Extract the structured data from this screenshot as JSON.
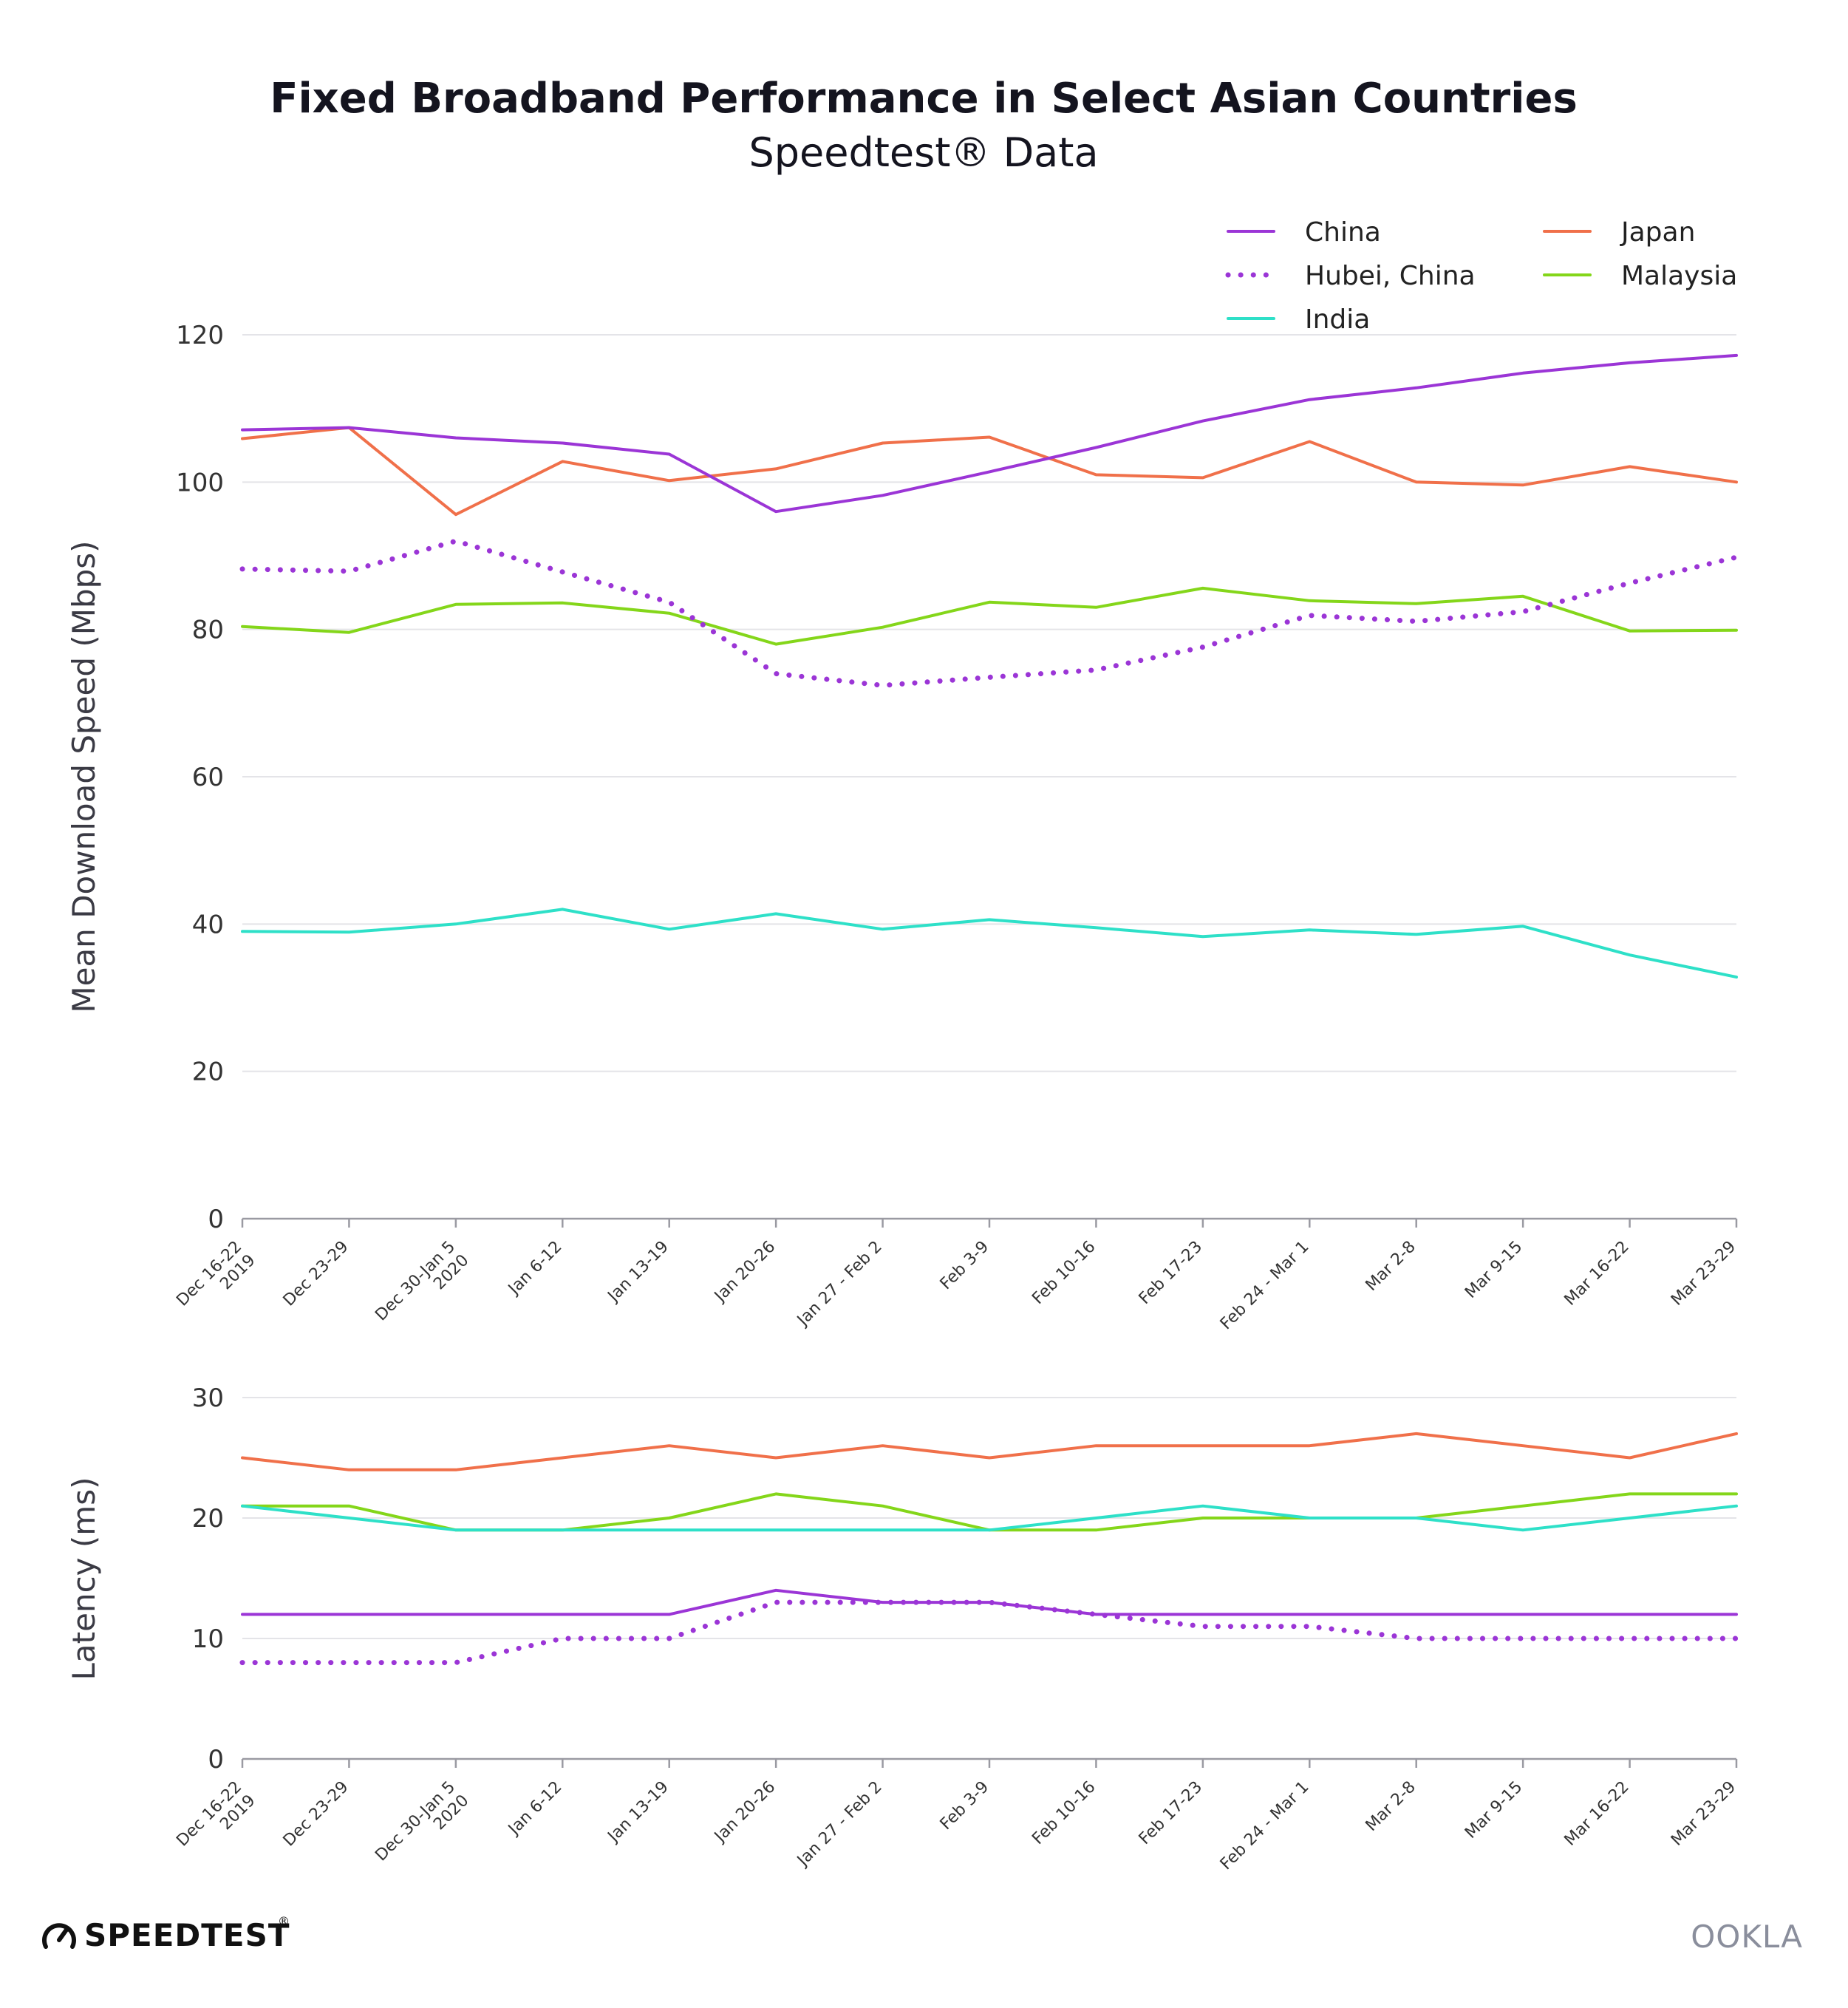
{
  "title": "Fixed Broadband Performance in Select Asian Countries",
  "subtitle": "Speedtest® Data",
  "colors": {
    "China": "#9b35d6",
    "Hubei, China": "#9b35d6",
    "India": "#2ee0c8",
    "Japan": "#f0704a",
    "Malaysia": "#84d61a"
  },
  "legend": [
    {
      "name": "China",
      "style": "solid"
    },
    {
      "name": "Hubei, China",
      "style": "dotted"
    },
    {
      "name": "India",
      "style": "solid"
    },
    {
      "name": "Japan",
      "style": "solid"
    },
    {
      "name": "Malaysia",
      "style": "solid"
    }
  ],
  "branding": {
    "speedtest": "SPEEDTEST",
    "speedtest_mark": "®",
    "ookla": "OOKLA"
  },
  "chart_data": [
    {
      "type": "line",
      "ylabel": "Mean Download Speed (Mbps)",
      "xlabel": "",
      "ylim": [
        0,
        120
      ],
      "yticks": [
        0,
        20,
        40,
        60,
        80,
        100,
        120
      ],
      "grid": true,
      "legend_position": "top-right",
      "categories": [
        [
          "Dec 16-22",
          "2019"
        ],
        [
          "Dec 23-29"
        ],
        [
          "Dec 30-Jan 5",
          "2020"
        ],
        [
          "Jan 6-12"
        ],
        [
          "Jan 13-19"
        ],
        [
          "Jan 20-26"
        ],
        [
          "Jan 27 - Feb 2"
        ],
        [
          "Feb 3-9"
        ],
        [
          "Feb 10-16"
        ],
        [
          "Feb 17-23"
        ],
        [
          "Feb 24 - Mar 1"
        ],
        [
          "Mar 2-8"
        ],
        [
          "Mar 9-15"
        ],
        [
          "Mar 16-22"
        ],
        [
          "Mar 23-29"
        ]
      ],
      "series": [
        {
          "name": "China",
          "style": "solid",
          "values": [
            107.1,
            107.4,
            106.0,
            105.3,
            103.8,
            96.0,
            98.2,
            101.4,
            104.7,
            108.3,
            111.2,
            112.8,
            114.8,
            116.2,
            117.2
          ]
        },
        {
          "name": "Hubei, China",
          "style": "dotted",
          "values": [
            88.2,
            87.9,
            92.0,
            87.8,
            83.7,
            74.0,
            72.4,
            73.5,
            74.5,
            77.6,
            81.9,
            81.1,
            82.4,
            86.3,
            89.8
          ]
        },
        {
          "name": "India",
          "style": "solid",
          "values": [
            39.0,
            38.9,
            40.0,
            42.0,
            39.3,
            41.4,
            39.3,
            40.6,
            39.5,
            38.3,
            39.2,
            38.6,
            39.7,
            35.8,
            32.8
          ]
        },
        {
          "name": "Japan",
          "style": "solid",
          "values": [
            105.9,
            107.4,
            95.6,
            102.8,
            100.2,
            101.8,
            105.3,
            106.1,
            101.0,
            100.6,
            105.5,
            100.0,
            99.6,
            102.1,
            100.0
          ]
        },
        {
          "name": "Malaysia",
          "style": "solid",
          "values": [
            80.4,
            79.6,
            83.4,
            83.6,
            82.2,
            78.0,
            80.3,
            83.7,
            83.0,
            85.6,
            83.9,
            83.5,
            84.5,
            79.8,
            79.9
          ]
        }
      ]
    },
    {
      "type": "line",
      "ylabel": "Latency (ms)",
      "xlabel": "",
      "ylim": [
        0,
        30
      ],
      "yticks": [
        0,
        10,
        20,
        30
      ],
      "grid": true,
      "categories": [
        [
          "Dec 16-22",
          "2019"
        ],
        [
          "Dec 23-29"
        ],
        [
          "Dec 30-Jan 5",
          "2020"
        ],
        [
          "Jan 6-12"
        ],
        [
          "Jan 13-19"
        ],
        [
          "Jan 20-26"
        ],
        [
          "Jan 27 - Feb 2"
        ],
        [
          "Feb 3-9"
        ],
        [
          "Feb 10-16"
        ],
        [
          "Feb 17-23"
        ],
        [
          "Feb 24 - Mar 1"
        ],
        [
          "Mar 2-8"
        ],
        [
          "Mar 9-15"
        ],
        [
          "Mar 16-22"
        ],
        [
          "Mar 23-29"
        ]
      ],
      "series": [
        {
          "name": "China",
          "style": "solid",
          "values": [
            12,
            12,
            12,
            12,
            12,
            14,
            13,
            13,
            12,
            12,
            12,
            12,
            12,
            12,
            12
          ]
        },
        {
          "name": "Hubei, China",
          "style": "dotted",
          "values": [
            8,
            8,
            8,
            10,
            10,
            13,
            13,
            13,
            12,
            11,
            11,
            10,
            10,
            10,
            10
          ]
        },
        {
          "name": "India",
          "style": "solid",
          "values": [
            21,
            20,
            19,
            19,
            19,
            19,
            19,
            19,
            20,
            21,
            20,
            20,
            19,
            20,
            21
          ]
        },
        {
          "name": "Japan",
          "style": "solid",
          "values": [
            25,
            24,
            24,
            25,
            26,
            25,
            26,
            25,
            26,
            26,
            26,
            27,
            26,
            25,
            27
          ]
        },
        {
          "name": "Malaysia",
          "style": "solid",
          "values": [
            21,
            21,
            19,
            19,
            20,
            22,
            21,
            19,
            19,
            20,
            20,
            20,
            21,
            22,
            22
          ]
        }
      ]
    }
  ]
}
